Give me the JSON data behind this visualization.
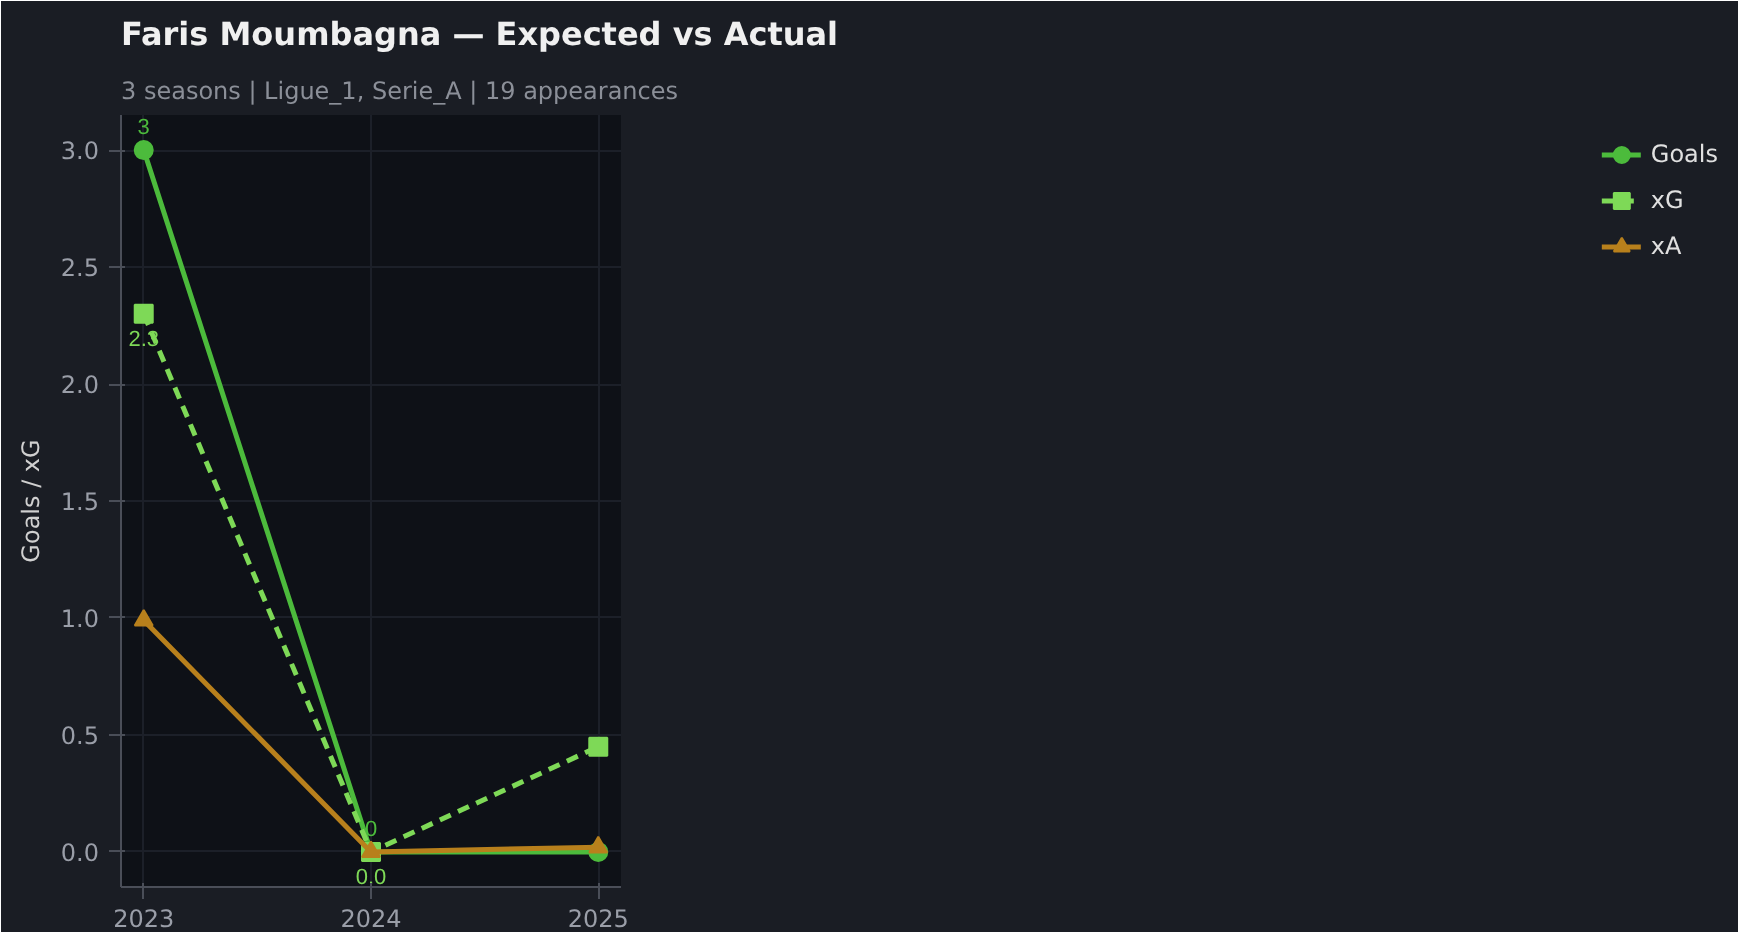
{
  "chart_data": {
    "type": "line",
    "title": "Faris Moumbagna — Expected vs Actual",
    "subtitle": "3 seasons | Ligue_1, Serie_A | 19 appearances",
    "ylabel": "Goals / xG",
    "categories": [
      "2023",
      "2024",
      "2025"
    ],
    "series": [
      {
        "name": "Goals",
        "color": "#4cbb3c",
        "values": [
          3,
          0,
          0
        ],
        "marker": "circle",
        "line_style": "solid",
        "value_labels": [
          "3",
          "0",
          null
        ]
      },
      {
        "name": "xG",
        "color": "#7ed957",
        "values": [
          2.3,
          0,
          0.45
        ],
        "marker": "square",
        "line_style": "dashed",
        "value_labels": [
          "2.3",
          "0.0",
          null
        ]
      },
      {
        "name": "xA",
        "color": "#b8801c",
        "values": [
          0.99,
          0,
          0.02
        ],
        "marker": "triangle",
        "line_style": "solid"
      }
    ],
    "ylim": [
      -0.15,
      3.15
    ],
    "yticks": [
      {
        "value": 0,
        "label": "0.0"
      },
      {
        "value": 0.5,
        "label": "0.5"
      },
      {
        "value": 1,
        "label": "1.0"
      },
      {
        "value": 1.5,
        "label": "1.5"
      },
      {
        "value": 2,
        "label": "2.0"
      },
      {
        "value": 2.5,
        "label": "2.5"
      },
      {
        "value": 3,
        "label": "3.0"
      }
    ],
    "grid": true,
    "legend": "right"
  }
}
